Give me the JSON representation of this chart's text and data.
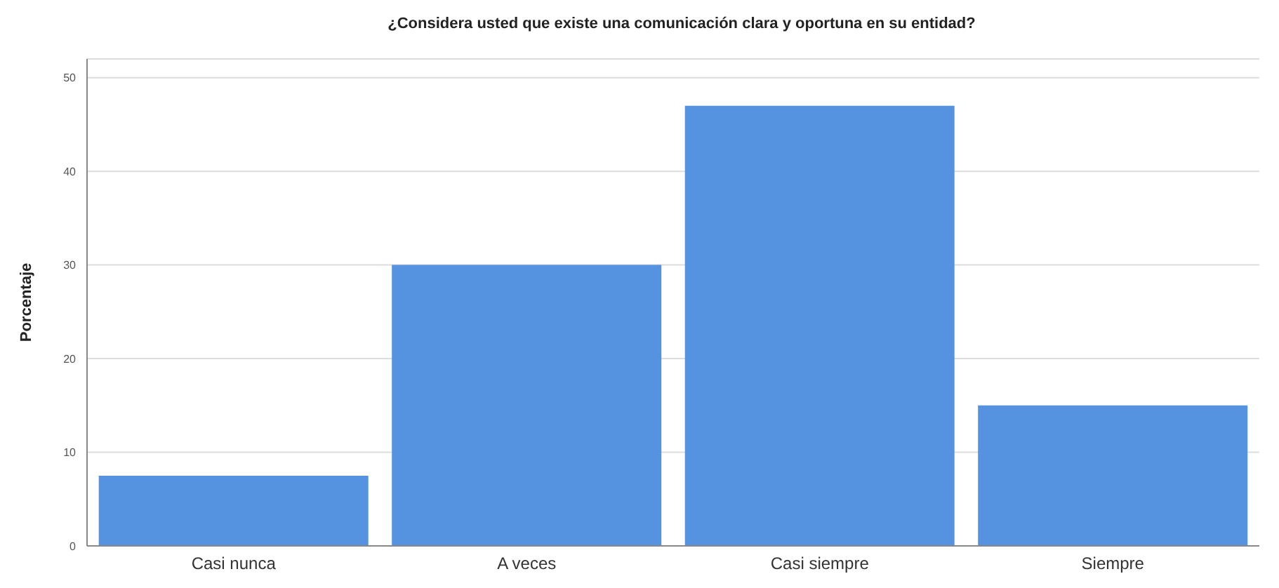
{
  "chart_data": {
    "type": "bar",
    "title": "¿Considera usted que existe una comunicación clara y oportuna en su entidad?",
    "ylabel": "Porcentaje",
    "categories": [
      "Casi nunca",
      "A veces",
      "Casi siempre",
      "Siempre"
    ],
    "values": [
      7.5,
      30,
      47,
      15
    ],
    "color": "#5592e0",
    "ylim": [
      0,
      52
    ],
    "yticks": [
      0,
      10,
      20,
      30,
      40,
      50
    ],
    "grid": "y"
  }
}
